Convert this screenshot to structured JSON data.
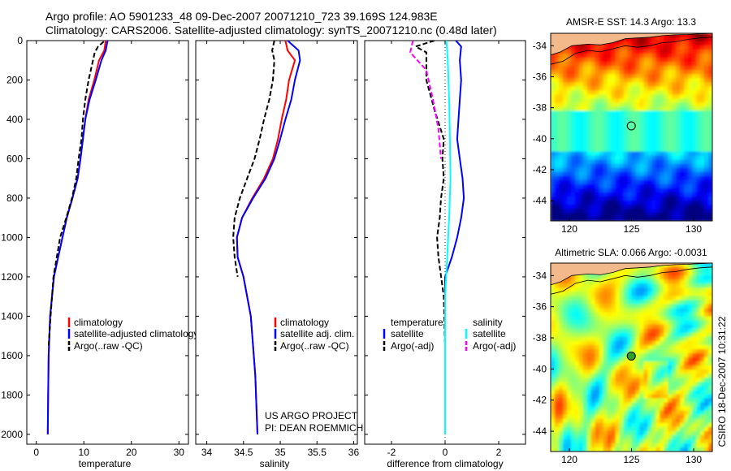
{
  "figure": {
    "title_line1": "Argo profile: AO 5901233_48 09-Dec-2007 20071210_723 39.169S 124.983E",
    "title_line2": "Climatology: CARS2006. Satellite-adjusted climatology: synTS_20071210.nc (0.48d later)",
    "credit_project": "US ARGO PROJECT",
    "credit_pi": "PI: DEAN ROEMMICH",
    "vertical_stamp": "CSIRO 18-Dec-2007 10:31:22"
  },
  "colors": {
    "climatology": "#ff0000",
    "satellite": "#0000ff",
    "argo": "#000000",
    "satellite_salinity": "#00ffff",
    "argo_salinity_adj": "#ff00ff",
    "land": "#f4b98a"
  },
  "chart_data": [
    {
      "type": "line",
      "panel": "temperature",
      "xlabel": "temperature",
      "ylabel": "",
      "xlim": [
        -2,
        32
      ],
      "ylim": [
        2050,
        0
      ],
      "xticks": [
        0,
        10,
        20,
        30
      ],
      "yticks": [
        0,
        200,
        400,
        600,
        800,
        1000,
        1200,
        1400,
        1600,
        1800,
        2000
      ],
      "legend": [
        "climatology",
        "satellite-adjusted climatology",
        "Argo(..raw -QC)"
      ],
      "series": [
        {
          "name": "climatology",
          "color": "#ff0000",
          "style": "solid",
          "x": [
            14.6,
            14.3,
            13.2,
            12.2,
            11.0,
            10.3,
            9.8,
            9.3,
            8.7,
            7.6,
            6.4,
            5.5,
            4.6,
            3.7,
            2.9,
            2.6,
            2.5,
            2.4
          ],
          "y": [
            0,
            50,
            100,
            200,
            300,
            400,
            500,
            600,
            700,
            800,
            900,
            1000,
            1100,
            1200,
            1400,
            1600,
            1800,
            2000
          ]
        },
        {
          "name": "satellite-adjusted climatology",
          "color": "#0000ff",
          "style": "solid",
          "x": [
            15.0,
            14.6,
            13.7,
            12.5,
            11.2,
            10.3,
            9.8,
            9.3,
            8.7,
            7.6,
            6.4,
            5.5,
            4.6,
            3.7,
            2.9,
            2.6,
            2.5,
            2.4
          ],
          "y": [
            0,
            50,
            100,
            200,
            300,
            400,
            500,
            600,
            700,
            800,
            900,
            1000,
            1100,
            1200,
            1400,
            1600,
            1800,
            2000
          ]
        },
        {
          "name": "Argo(..raw -QC)",
          "color": "#000000",
          "style": "dashed",
          "x": [
            14.2,
            13.0,
            12.3,
            11.0,
            10.3,
            9.8,
            9.5,
            8.9,
            8.4,
            7.5,
            6.3,
            5.0,
            4.3,
            3.6,
            3.0,
            2.6
          ],
          "y": [
            5,
            30,
            60,
            200,
            300,
            400,
            500,
            600,
            700,
            800,
            900,
            1000,
            1100,
            1200,
            1400,
            1550
          ]
        }
      ]
    },
    {
      "type": "line",
      "panel": "salinity",
      "xlabel": "salinity",
      "ylabel": "",
      "xlim": [
        33.85,
        36.05
      ],
      "ylim": [
        2050,
        0
      ],
      "xticks": [
        34,
        34.5,
        35,
        35.5,
        36
      ],
      "legend": [
        "climatology",
        "satellite adj. clim.",
        "Argo(..raw -QC)"
      ],
      "series": [
        {
          "name": "climatology",
          "color": "#ff0000",
          "style": "solid",
          "x": [
            35.07,
            35.1,
            35.2,
            35.12,
            35.08,
            35.02,
            34.97,
            34.9,
            34.78,
            34.62,
            34.48,
            34.41,
            34.42,
            34.5,
            34.6,
            34.66,
            34.69
          ],
          "y": [
            0,
            50,
            100,
            200,
            300,
            400,
            500,
            600,
            700,
            800,
            900,
            1000,
            1100,
            1200,
            1400,
            1700,
            2000
          ]
        },
        {
          "name": "satellite adj. clim.",
          "color": "#0000ff",
          "style": "solid",
          "x": [
            35.1,
            35.25,
            35.27,
            35.2,
            35.15,
            35.07,
            35.0,
            34.92,
            34.8,
            34.63,
            34.48,
            34.41,
            34.42,
            34.5,
            34.6,
            34.66,
            34.69
          ],
          "y": [
            0,
            50,
            100,
            200,
            300,
            400,
            500,
            600,
            700,
            800,
            900,
            1000,
            1100,
            1200,
            1400,
            1700,
            2000
          ]
        },
        {
          "name": "Argo(..raw -QC)",
          "color": "#000000",
          "style": "dashed",
          "x": [
            34.92,
            34.89,
            34.92,
            34.9,
            34.85,
            34.78,
            34.72,
            34.65,
            34.55,
            34.45,
            34.38,
            34.36,
            34.38,
            34.42
          ],
          "y": [
            0,
            50,
            100,
            200,
            300,
            400,
            500,
            600,
            700,
            800,
            900,
            1000,
            1100,
            1200
          ]
        }
      ]
    },
    {
      "type": "line",
      "panel": "difference",
      "xlabel": "difference from climatology",
      "ylabel": "",
      "xlim": [
        -3,
        3
      ],
      "ylim": [
        2050,
        0
      ],
      "xticks": [
        -2,
        0,
        2
      ],
      "legend_groups": [
        {
          "heading": "temperature",
          "items": [
            "satellite",
            "Argo(-adj)"
          ]
        },
        {
          "heading": "salinity",
          "items": [
            "satellite",
            "Argo(-adj)"
          ]
        }
      ],
      "series": [
        {
          "name": "temperature satellite",
          "color": "#0000ff",
          "style": "solid",
          "x": [
            0.4,
            0.6,
            0.55,
            0.6,
            0.55,
            0.5,
            0.45,
            0.55,
            0.65,
            0.7,
            0.6,
            0.45,
            0.25,
            0.0,
            0.0
          ],
          "y": [
            0,
            30,
            100,
            200,
            300,
            400,
            500,
            600,
            700,
            800,
            900,
            1000,
            1100,
            1200,
            2000
          ]
        },
        {
          "name": "temperature Argo(-adj)",
          "color": "#000000",
          "style": "dashed",
          "x": [
            -0.4,
            -1.1,
            -0.7,
            -0.7,
            -0.4,
            -0.05,
            -0.1,
            -0.05,
            -0.15,
            -0.2,
            -0.3,
            -0.25,
            -0.05,
            0.0
          ],
          "y": [
            0,
            30,
            60,
            200,
            350,
            500,
            600,
            700,
            800,
            900,
            1000,
            1100,
            1300,
            1550
          ]
        },
        {
          "name": "salinity satellite",
          "color": "#00ffff",
          "style": "solid",
          "x": [
            0.05,
            0.1,
            0.15,
            0.18,
            0.2,
            0.15,
            0.08,
            0.0,
            0.0,
            0.0
          ],
          "y": [
            0,
            100,
            300,
            500,
            700,
            900,
            1100,
            1300,
            1600,
            2000
          ]
        },
        {
          "name": "salinity Argo(-adj)",
          "color": "#ff00ff",
          "style": "dashed",
          "x": [
            -1.2,
            -1.3,
            -0.7,
            -0.45,
            -0.25,
            -0.15
          ],
          "y": [
            0,
            60,
            150,
            300,
            450,
            600
          ]
        }
      ]
    },
    {
      "type": "heatmap",
      "panel": "AMSR-E SST map",
      "title": "AMSR-E SST: 14.3 Argo: 13.3",
      "xlim": [
        118.5,
        131.5
      ],
      "ylim": [
        -45.3,
        -33.2
      ],
      "xticks": [
        120,
        125,
        130
      ],
      "yticks": [
        -34,
        -36,
        -38,
        -40,
        -42,
        -44
      ],
      "argo_position": {
        "lon": 124.983,
        "lat": -39.169
      }
    },
    {
      "type": "heatmap",
      "panel": "Altimetric SLA map",
      "title": "Altimetric SLA: 0.066 Argo: -0.0031",
      "xlim": [
        118.5,
        131.5
      ],
      "ylim": [
        -45.3,
        -33.2
      ],
      "xticks": [
        120,
        125,
        130
      ],
      "yticks": [
        -34,
        -36,
        -38,
        -40,
        -42,
        -44
      ],
      "argo_position": {
        "lon": 124.983,
        "lat": -39.169
      }
    }
  ]
}
